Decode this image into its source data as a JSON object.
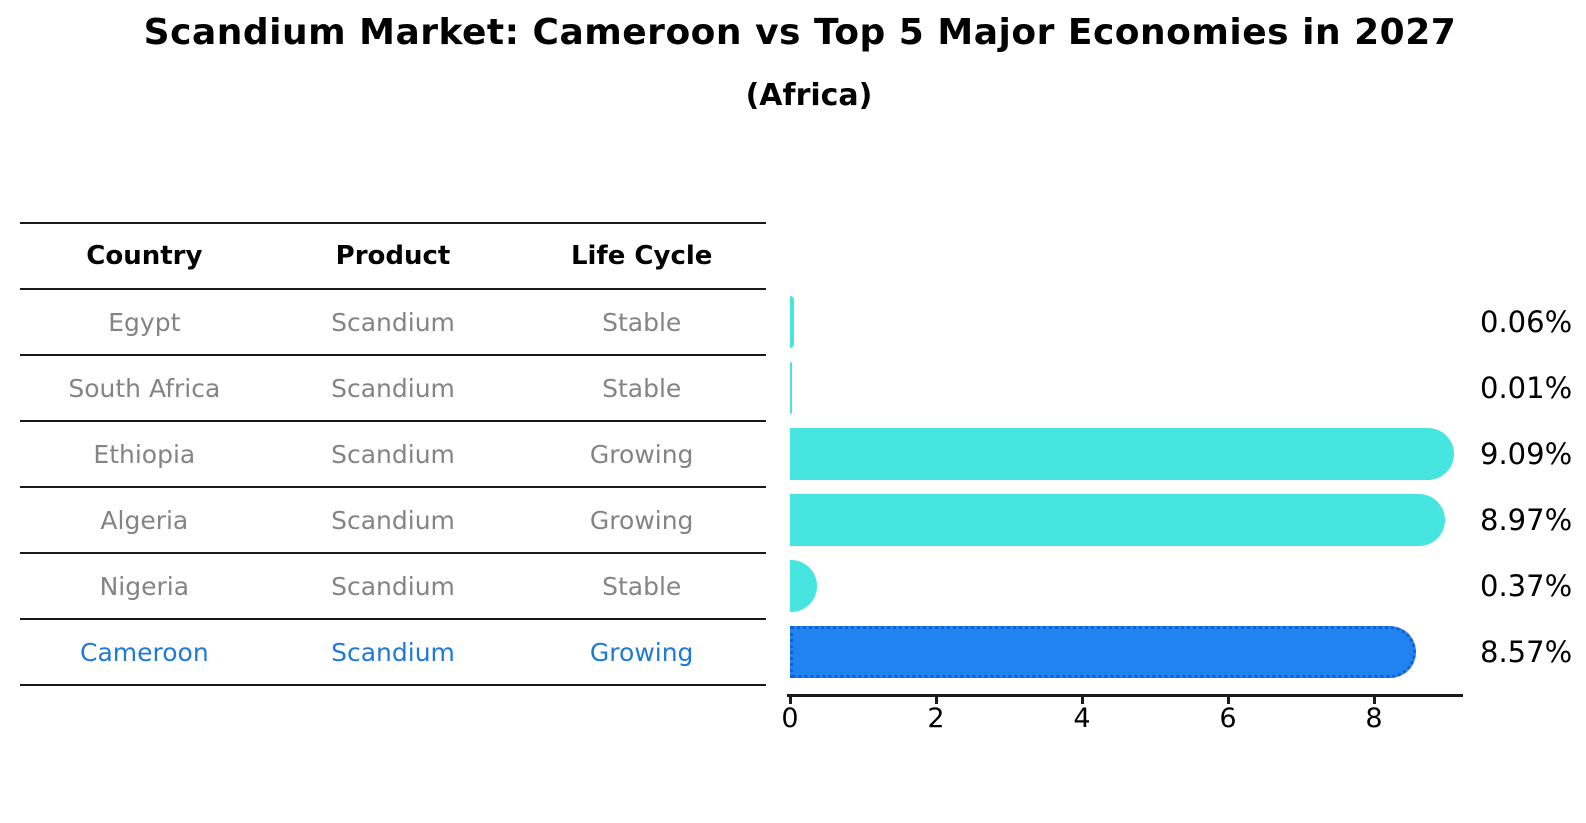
{
  "title": "Scandium Market: Cameroon vs Top 5 Major Economies in 2027",
  "subtitle": "(Africa)",
  "table": {
    "headers": [
      "Country",
      "Product",
      "Life Cycle"
    ],
    "rows": [
      {
        "country": "Egypt",
        "product": "Scandium",
        "life_cycle": "Stable"
      },
      {
        "country": "South Africa",
        "product": "Scandium",
        "life_cycle": "Stable"
      },
      {
        "country": "Ethiopia",
        "product": "Scandium",
        "life_cycle": "Growing"
      },
      {
        "country": "Algeria",
        "product": "Scandium",
        "life_cycle": "Growing"
      },
      {
        "country": "Nigeria",
        "product": "Scandium",
        "life_cycle": "Stable"
      },
      {
        "country": "Cameroon",
        "product": "Scandium",
        "life_cycle": "Growing"
      }
    ],
    "highlighted_row": "Cameroon"
  },
  "chart_data": {
    "type": "bar",
    "orientation": "horizontal",
    "title": "Scandium Market: Cameroon vs Top 5 Major Economies in 2027",
    "subtitle": "(Africa)",
    "categories": [
      "Egypt",
      "South Africa",
      "Ethiopia",
      "Algeria",
      "Nigeria",
      "Cameroon"
    ],
    "values": [
      0.06,
      0.01,
      9.09,
      8.97,
      0.37,
      8.57
    ],
    "value_labels": [
      "0.06%",
      "0.01%",
      "9.09%",
      "8.97%",
      "0.37%",
      "8.57%"
    ],
    "x_ticks": [
      "0",
      "2",
      "4",
      "6",
      "8"
    ],
    "x_tick_values": [
      0,
      2,
      4,
      6,
      8
    ],
    "xlim": [
      0,
      9.3
    ],
    "grid": false,
    "legend": false,
    "bar_color": "#46e5e0",
    "highlight_bar_color": "#2183f0",
    "highlight_index": 5
  },
  "colors": {
    "text_muted": "#848484",
    "highlight_text": "#1f79d9",
    "axis": "#1a1a1a",
    "label_text": "#000000"
  }
}
